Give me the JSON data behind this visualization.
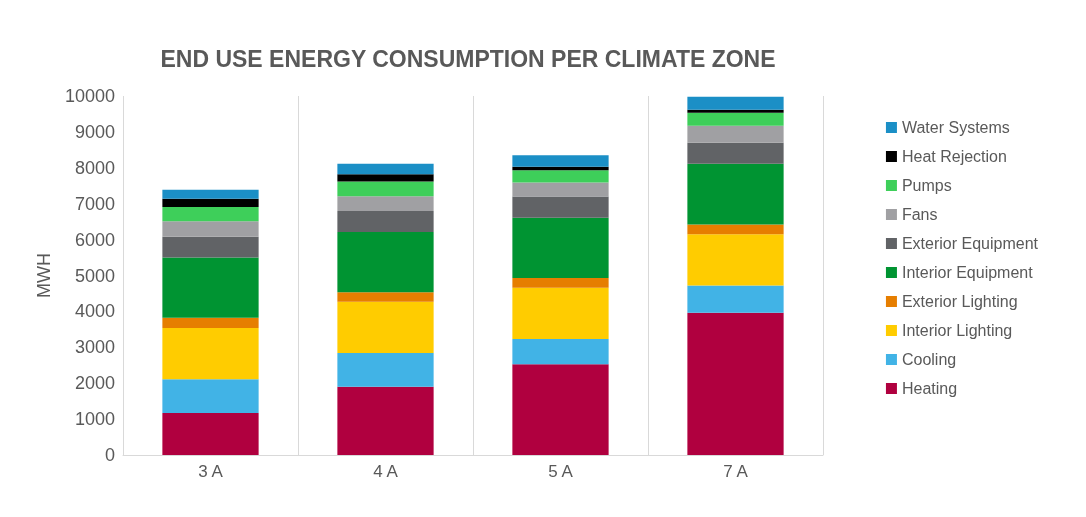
{
  "chart_data": {
    "type": "bar",
    "title": "END USE ENERGY CONSUMPTION PER CLIMATE ZONE",
    "ylabel": "MWH",
    "categories": [
      "3 A",
      "4 A",
      "5 A",
      "7 A"
    ],
    "stacked": true,
    "ylim": [
      0,
      10000
    ],
    "yticks": [
      0,
      1000,
      2000,
      3000,
      4000,
      5000,
      6000,
      7000,
      8000,
      9000,
      10000
    ],
    "grid": "x",
    "legend": "right",
    "series": [
      {
        "name": "Heating",
        "color": "#b0003f",
        "values": [
          1170,
          1900,
          2530,
          3960
        ]
      },
      {
        "name": "Cooling",
        "color": "#41b3e6",
        "values": [
          940,
          940,
          700,
          760
        ]
      },
      {
        "name": "Interior Lighting",
        "color": "#ffcc00",
        "values": [
          1430,
          1430,
          1430,
          1430
        ]
      },
      {
        "name": "Exterior Lighting",
        "color": "#e67e00",
        "values": [
          280,
          260,
          270,
          270
        ]
      },
      {
        "name": "Interior Equipment",
        "color": "#009432",
        "values": [
          1680,
          1680,
          1680,
          1690
        ]
      },
      {
        "name": "Exterior Equipment",
        "color": "#616366",
        "values": [
          580,
          590,
          590,
          590
        ]
      },
      {
        "name": "Fans",
        "color": "#a0a0a3",
        "values": [
          430,
          410,
          390,
          470
        ]
      },
      {
        "name": "Pumps",
        "color": "#3ecf5a",
        "values": [
          400,
          410,
          340,
          360
        ]
      },
      {
        "name": "Heat Rejection",
        "color": "#000000",
        "values": [
          230,
          200,
          100,
          90
        ]
      },
      {
        "name": "Water Systems",
        "color": "#1b8fc6",
        "values": [
          250,
          290,
          320,
          360
        ]
      }
    ]
  }
}
